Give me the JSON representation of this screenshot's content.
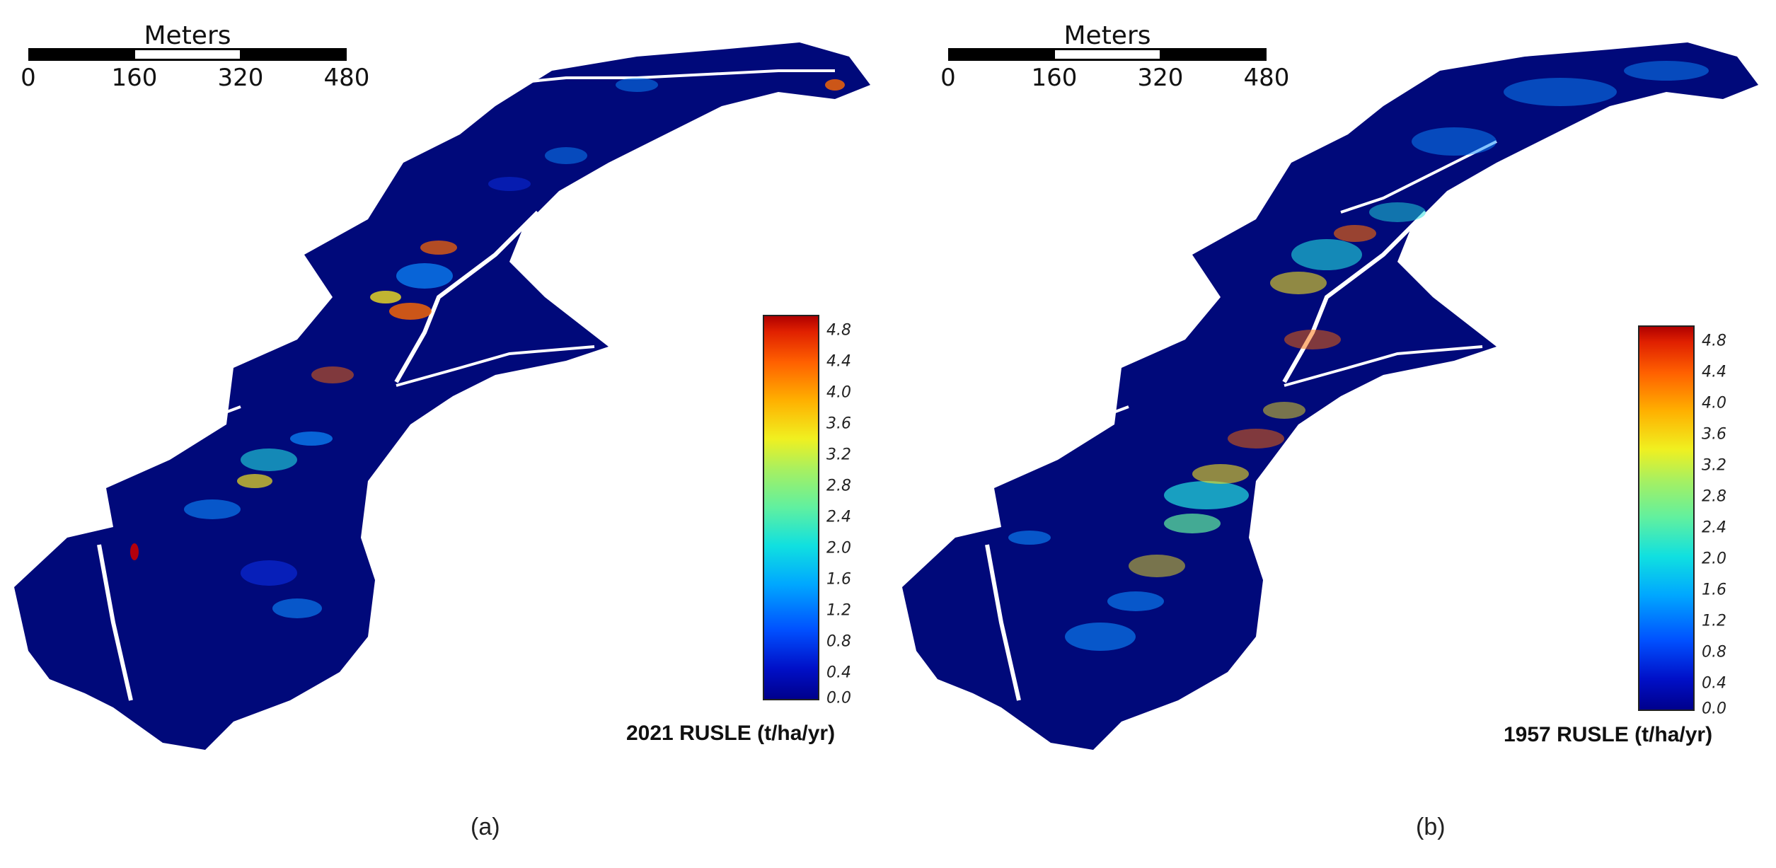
{
  "panels": [
    {
      "scalebar": {
        "title": "Meters",
        "ticks": [
          "0",
          "160",
          "320",
          "480"
        ]
      },
      "legend": {
        "title": "2021 RUSLE (t/ha/yr)",
        "ticks": [
          "4.8",
          "4.4",
          "4.0",
          "3.6",
          "3.2",
          "2.8",
          "2.4",
          "2.0",
          "1.6",
          "1.2",
          "0.8",
          "0.4",
          "0.0"
        ]
      },
      "caption": "(a)"
    },
    {
      "scalebar": {
        "title": "Meters",
        "ticks": [
          "0",
          "160",
          "320",
          "480"
        ]
      },
      "legend": {
        "title": "1957 RUSLE (t/ha/yr)",
        "ticks": [
          "4.8",
          "4.4",
          "4.0",
          "3.6",
          "3.2",
          "2.8",
          "2.4",
          "2.0",
          "1.6",
          "1.2",
          "0.8",
          "0.4",
          "0.0"
        ]
      },
      "caption": "(b)"
    }
  ],
  "colors": {
    "base": "#00097a",
    "low": "#0a2ad4",
    "mid": "#0c8cff",
    "cyan": "#22e0e0",
    "yellow": "#f0e020",
    "high": "#ff6a00",
    "max": "#c80000"
  }
}
